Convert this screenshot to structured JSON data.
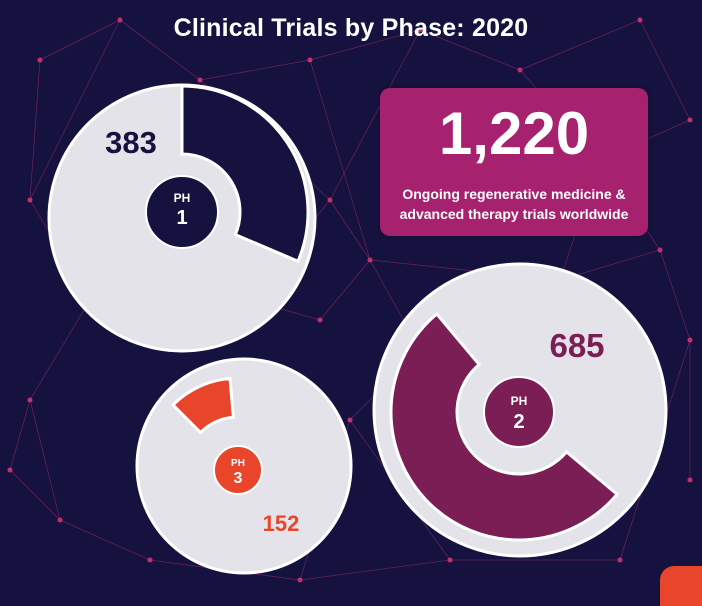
{
  "title": "Clinical Trials by Phase: 2020",
  "callout": {
    "value": "1,220",
    "text": "Ongoing regenerative medicine & advanced therapy trials worldwide"
  },
  "colors": {
    "background": "#16123f",
    "ph1": "#16123f",
    "ph2": "#7b1e55",
    "ph3": "#e8452a",
    "callout": "#a6226f",
    "disc": "#e4e3ea"
  },
  "chart_data": {
    "type": "radial",
    "title": "Clinical Trials by Phase: 2020",
    "total": 1220,
    "categories": [
      "PH 1",
      "PH 2",
      "PH 3"
    ],
    "values": [
      383,
      685,
      152
    ],
    "series": [
      {
        "phase_top": "PH",
        "phase_num": "1",
        "value": 383,
        "label": "383"
      },
      {
        "phase_top": "PH",
        "phase_num": "2",
        "value": 685,
        "label": "685"
      },
      {
        "phase_top": "PH",
        "phase_num": "3",
        "value": 152,
        "label": "152"
      }
    ]
  }
}
